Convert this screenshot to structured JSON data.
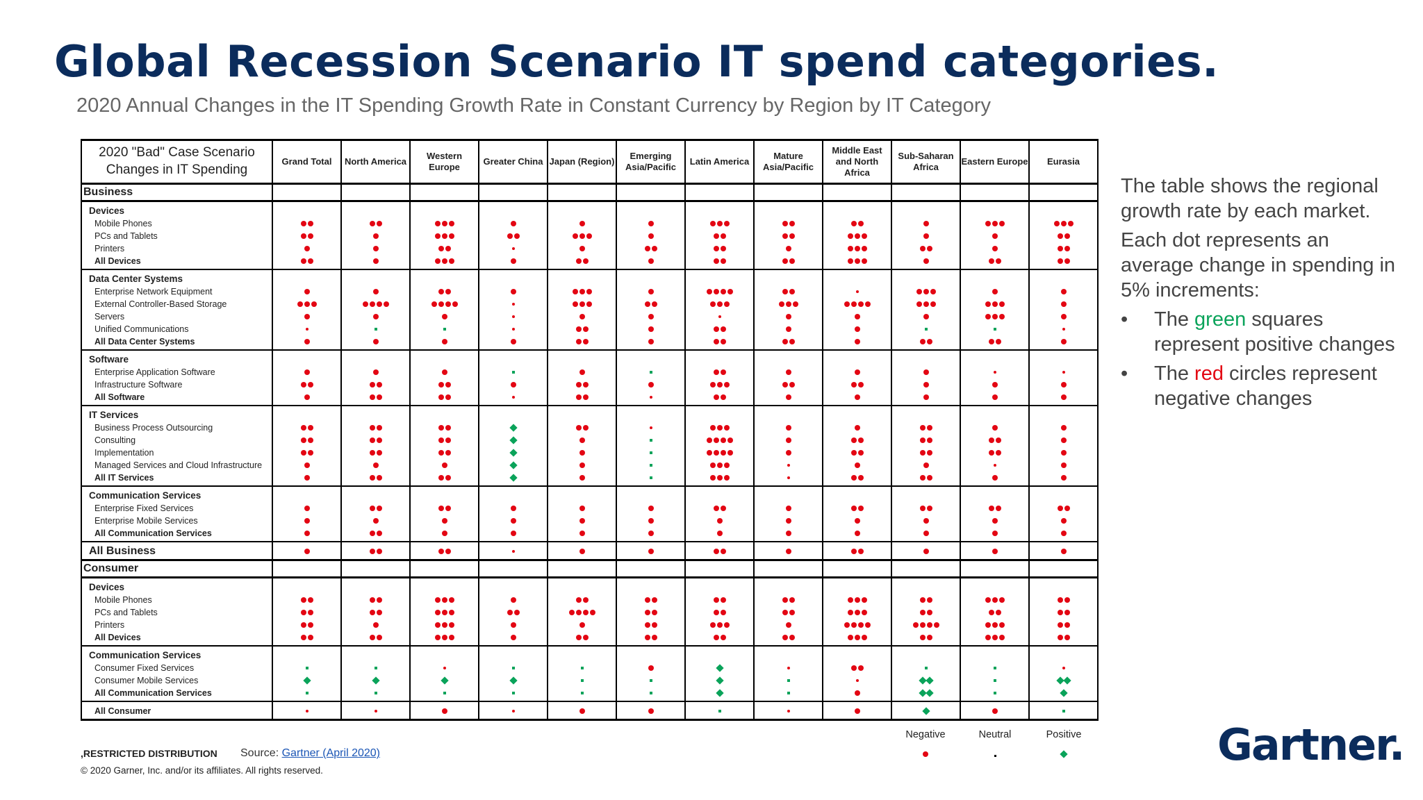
{
  "title": "Global Recession Scenario IT spend categories.",
  "subtitle": "2020 Annual Changes in the IT Spending Growth Rate in Constant Currency by Region by IT Category",
  "colors": {
    "negative": "#e30613",
    "positive": "#0aa35a",
    "neutral": "#000000",
    "title": "#0b2c5c"
  },
  "table": {
    "scenario_header": "2020 \"Bad\" Case Scenario Changes in IT Spending",
    "columns": [
      "Grand Total",
      "North America",
      "Western Europe",
      "Greater China",
      "Japan (Region)",
      "Emerging Asia/Pacific",
      "Latin America",
      "Mature Asia/Pacific",
      "Middle East and North Africa",
      "Sub-Saharan Africa",
      "Eastern Europe",
      "Eurasia"
    ],
    "legend_values": "Each value = count of 5% increments; negative numbers are red circles, positive numbers are green diamonds, 0 is neutral; n/p = small negative/positive marks",
    "sections": [
      {
        "title": "Business",
        "groups": [
          {
            "title": "Devices",
            "rows": [
              {
                "label": "Mobile Phones",
                "values": [
                  "-2",
                  "-2",
                  "-3",
                  "-1",
                  "-1",
                  "-1",
                  "-3",
                  "-2",
                  "-2",
                  "-1",
                  "-3",
                  "-3"
                ]
              },
              {
                "label": "PCs and Tablets",
                "values": [
                  "-2",
                  "-1",
                  "-3",
                  "-2",
                  "-3",
                  "-1",
                  "-2",
                  "-2",
                  "-3",
                  "-1",
                  "-1",
                  "-2"
                ]
              },
              {
                "label": "Printers",
                "values": [
                  "-1",
                  "-1",
                  "-2",
                  "n",
                  "-1",
                  "-2",
                  "-2",
                  "-1",
                  "-3",
                  "-2",
                  "-1",
                  "-2"
                ]
              },
              {
                "label": "All Devices",
                "values": [
                  "-2",
                  "-1",
                  "-3",
                  "-1",
                  "-2",
                  "-1",
                  "-2",
                  "-2",
                  "-3",
                  "-1",
                  "-2",
                  "-2"
                ],
                "total": true
              }
            ]
          },
          {
            "title": "Data Center Systems",
            "rows": [
              {
                "label": "Enterprise Network Equipment",
                "values": [
                  "-1",
                  "-1",
                  "-2",
                  "-1",
                  "-3",
                  "-1",
                  "-4",
                  "-2",
                  "n",
                  "-3",
                  "-1",
                  "-1"
                ]
              },
              {
                "label": "External Controller-Based Storage",
                "values": [
                  "-3",
                  "-4",
                  "-4",
                  "n",
                  "-3",
                  "-2",
                  "-3",
                  "-3",
                  "-4",
                  "-3",
                  "-3",
                  "-1"
                ]
              },
              {
                "label": "Servers",
                "values": [
                  "-1",
                  "-1",
                  "-1",
                  "n",
                  "-1",
                  "-1",
                  "n",
                  "-1",
                  "-1",
                  "-1",
                  "-3",
                  "-1"
                ]
              },
              {
                "label": "Unified Communications",
                "values": [
                  "n",
                  "p",
                  "p",
                  "n",
                  "-2",
                  "-1",
                  "-2",
                  "-1",
                  "-1",
                  "p",
                  "p",
                  "n"
                ]
              },
              {
                "label": "All Data Center Systems",
                "values": [
                  "-1",
                  "-1",
                  "-1",
                  "-1",
                  "-2",
                  "-1",
                  "-2",
                  "-2",
                  "-1",
                  "-2",
                  "-2",
                  "-1"
                ],
                "total": true
              }
            ]
          },
          {
            "title": "Software",
            "rows": [
              {
                "label": "Enterprise Application Software",
                "values": [
                  "-1",
                  "-1",
                  "-1",
                  "p",
                  "-1",
                  "p",
                  "-2",
                  "-1",
                  "-1",
                  "-1",
                  "n",
                  "n"
                ]
              },
              {
                "label": "Infrastructure Software",
                "values": [
                  "-2",
                  "-2",
                  "-2",
                  "-1",
                  "-2",
                  "-1",
                  "-3",
                  "-2",
                  "-2",
                  "-1",
                  "-1",
                  "-1"
                ]
              },
              {
                "label": "All Software",
                "values": [
                  "-1",
                  "-2",
                  "-2",
                  "n",
                  "-2",
                  "n",
                  "-2",
                  "-1",
                  "-1",
                  "-1",
                  "-1",
                  "-1"
                ],
                "total": true
              }
            ]
          },
          {
            "title": "IT Services",
            "rows": [
              {
                "label": "Business Process Outsourcing",
                "values": [
                  "-2",
                  "-2",
                  "-2",
                  "+1",
                  "-2",
                  "n",
                  "-3",
                  "-1",
                  "-1",
                  "-2",
                  "-1",
                  "-1"
                ]
              },
              {
                "label": "Consulting",
                "values": [
                  "-2",
                  "-2",
                  "-2",
                  "+1",
                  "-1",
                  "p",
                  "-4",
                  "-1",
                  "-2",
                  "-2",
                  "-2",
                  "-1"
                ]
              },
              {
                "label": "Implementation",
                "values": [
                  "-2",
                  "-2",
                  "-2",
                  "+1",
                  "-1",
                  "p",
                  "-4",
                  "-1",
                  "-2",
                  "-2",
                  "-2",
                  "-1"
                ]
              },
              {
                "label": "Managed Services and Cloud Infrastructure",
                "values": [
                  "-1",
                  "-1",
                  "-1",
                  "+1",
                  "-1",
                  "p",
                  "-3",
                  "n",
                  "-1",
                  "-1",
                  "n",
                  "-1"
                ]
              },
              {
                "label": "All IT Services",
                "values": [
                  "-1",
                  "-2",
                  "-2",
                  "+1",
                  "-1",
                  "p",
                  "-3",
                  "n",
                  "-2",
                  "-2",
                  "-1",
                  "-1"
                ],
                "total": true
              }
            ]
          },
          {
            "title": "Communication Services",
            "rows": [
              {
                "label": "Enterprise Fixed Services",
                "values": [
                  "-1",
                  "-2",
                  "-2",
                  "-1",
                  "-1",
                  "-1",
                  "-2",
                  "-1",
                  "-2",
                  "-2",
                  "-2",
                  "-2"
                ]
              },
              {
                "label": "Enterprise Mobile Services",
                "values": [
                  "-1",
                  "-1",
                  "-1",
                  "-1",
                  "-1",
                  "-1",
                  "-1",
                  "-1",
                  "-1",
                  "-1",
                  "-1",
                  "-1"
                ]
              },
              {
                "label": "All Communication Services",
                "values": [
                  "-1",
                  "-2",
                  "-1",
                  "-1",
                  "-1",
                  "-1",
                  "-1",
                  "-1",
                  "-1",
                  "-1",
                  "-1",
                  "-1"
                ],
                "total": true
              }
            ]
          },
          {
            "title": "",
            "rows": [
              {
                "label": "All Business",
                "values": [
                  "-1",
                  "-2",
                  "-2",
                  "n",
                  "-1",
                  "-1",
                  "-2",
                  "-1",
                  "-2",
                  "-1",
                  "-1",
                  "-1"
                ],
                "bigtotal": true
              }
            ]
          }
        ]
      },
      {
        "title": "Consumer",
        "groups": [
          {
            "title": "Devices",
            "rows": [
              {
                "label": "Mobile Phones",
                "values": [
                  "-2",
                  "-2",
                  "-3",
                  "-1",
                  "-2",
                  "-2",
                  "-2",
                  "-2",
                  "-3",
                  "-2",
                  "-3",
                  "-2"
                ]
              },
              {
                "label": "PCs and Tablets",
                "values": [
                  "-2",
                  "-2",
                  "-3",
                  "-2",
                  "-4",
                  "-2",
                  "-2",
                  "-2",
                  "-3",
                  "-2",
                  "-2",
                  "-2"
                ]
              },
              {
                "label": "Printers",
                "values": [
                  "-2",
                  "-1",
                  "-3",
                  "-1",
                  "-1",
                  "-2",
                  "-3",
                  "-1",
                  "-4",
                  "-4",
                  "-3",
                  "-2"
                ]
              },
              {
                "label": "All Devices",
                "values": [
                  "-2",
                  "-2",
                  "-3",
                  "-1",
                  "-2",
                  "-2",
                  "-2",
                  "-2",
                  "-3",
                  "-2",
                  "-3",
                  "-2"
                ],
                "total": true
              }
            ]
          },
          {
            "title": "Communication Services",
            "rows": [
              {
                "label": "Consumer Fixed Services",
                "values": [
                  "p",
                  "p",
                  "n",
                  "p",
                  "p",
                  "-1",
                  "+1",
                  "n",
                  "-2",
                  "p",
                  "p",
                  "n"
                ]
              },
              {
                "label": "Consumer Mobile Services",
                "values": [
                  "+1",
                  "+1",
                  "+1",
                  "+1",
                  "p",
                  "p",
                  "+1",
                  "p",
                  "n",
                  "+2",
                  "p",
                  "+2"
                ]
              },
              {
                "label": "All Communication Services",
                "values": [
                  "p",
                  "p",
                  "p",
                  "p",
                  "p",
                  "p",
                  "+1",
                  "p",
                  "-1",
                  "+2",
                  "p",
                  "+1"
                ],
                "total": true
              }
            ]
          },
          {
            "title": "",
            "rows": [
              {
                "label": "All Consumer",
                "values": [
                  "n",
                  "n",
                  "-1",
                  "n",
                  "-1",
                  "-1",
                  "p",
                  "n",
                  "-1",
                  "+1",
                  "-1",
                  "p"
                ],
                "total": true
              }
            ]
          }
        ]
      }
    ]
  },
  "side": {
    "p1": "The table shows the regional growth rate by each market.",
    "p2": "Each dot represents an average change in spending in 5% increments:",
    "bullet": "•",
    "b1_pre": "The ",
    "b1_color": "green",
    "b1_post": " squares represent positive changes",
    "b2_pre": "The ",
    "b2_color": "red",
    "b2_post": " circles represent negative changes"
  },
  "legend": {
    "negative": "Negative",
    "neutral": "Neutral",
    "positive": "Positive"
  },
  "footer": {
    "restricted": ",RESTRICTED DISTRIBUTION",
    "source_label": "Source: ",
    "source_link": "Gartner (April 2020)",
    "copyright": "© 2020 Garner, Inc. and/or its affiliates. All rights reserved."
  },
  "logo": {
    "text": "Gartner",
    "mark": "."
  }
}
